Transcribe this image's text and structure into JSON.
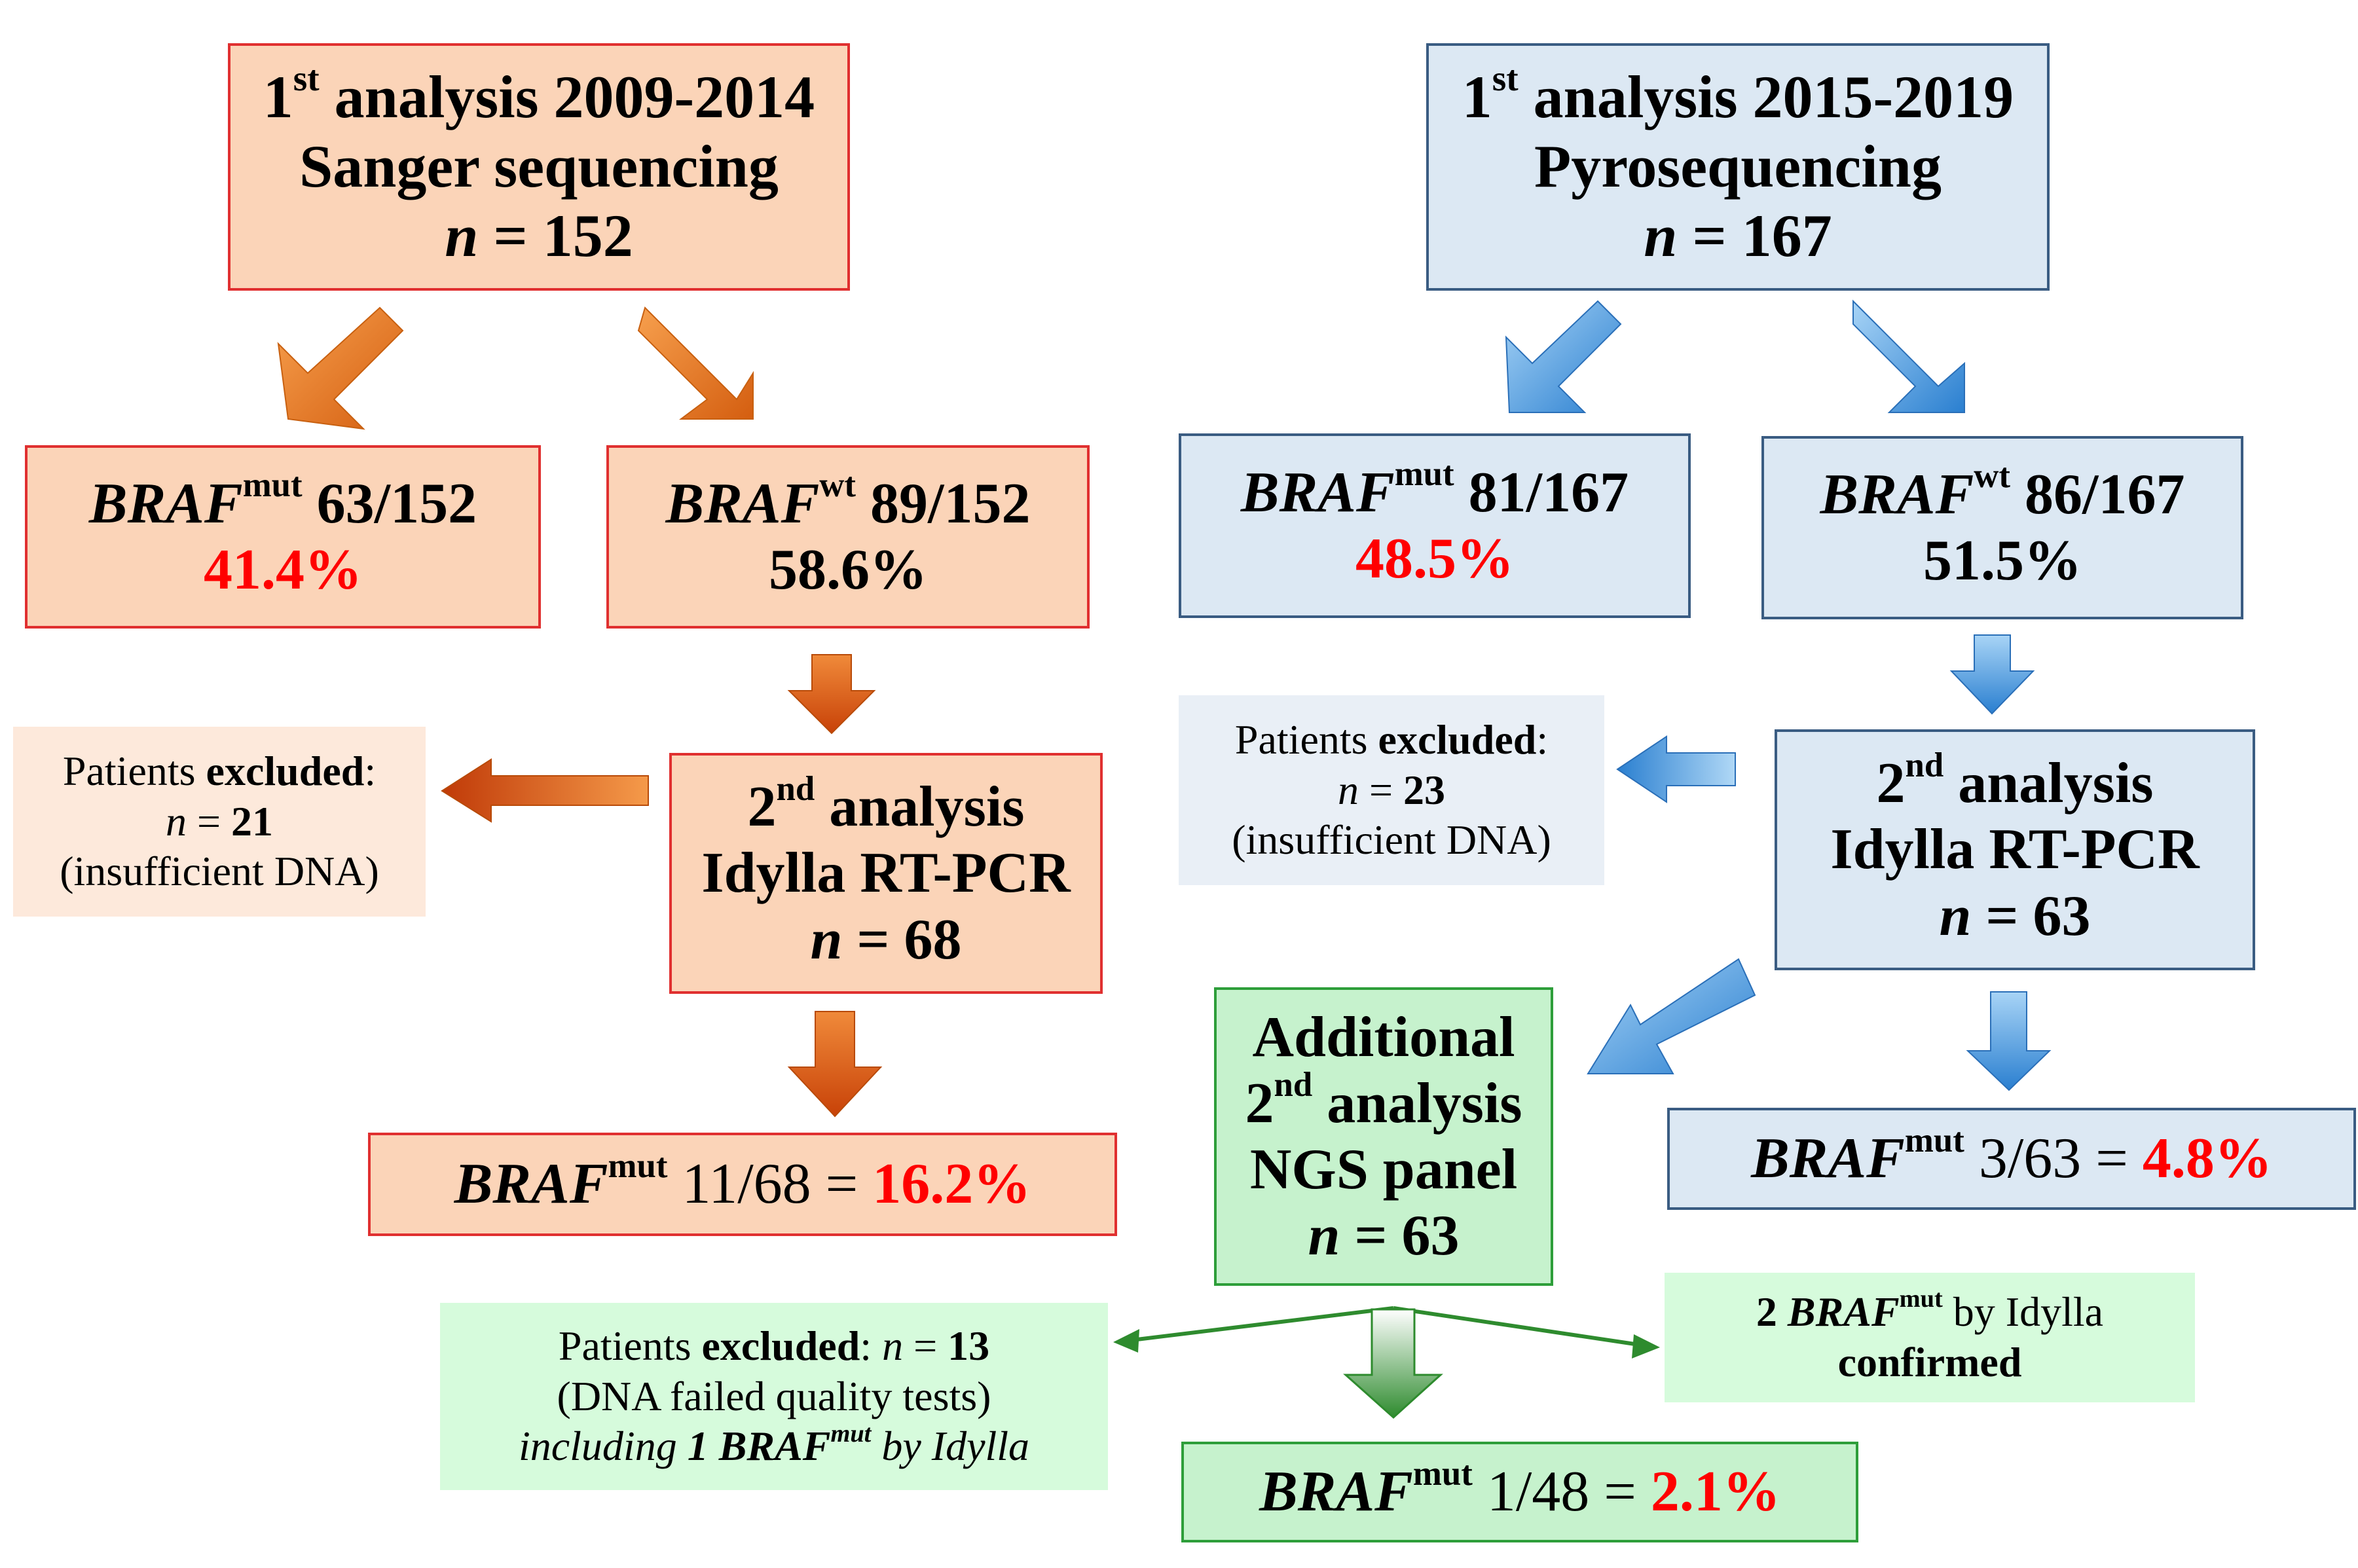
{
  "colors": {
    "orange_fill": "#fbd4b8",
    "blue_fill": "#dce8f3",
    "green_fill": "#c6f2cd",
    "red_text": "#ff0000",
    "orange_arrow": "#e8731e",
    "blue_arrow": "#3b8fd8",
    "green_arrow": "#2e8b2e"
  },
  "left": {
    "first": {
      "ord": "1",
      "sup": "st",
      "title": "analysis 2009-2014",
      "method": "Sanger sequencing",
      "n_label": "n",
      "n_value": "= 152"
    },
    "mut": {
      "gene": "BRAF",
      "sup": "mut",
      "frac": "63/152",
      "pct": "41.4%"
    },
    "wt": {
      "gene": "BRAF",
      "sup": "wt",
      "frac": "89/152",
      "pct": "58.6%"
    },
    "excluded": {
      "prefix": "Patients",
      "bold": "excluded",
      "colon": ":",
      "n_label": "n",
      "n_eq": "=",
      "n_value": "21",
      "reason": "(insufficient DNA)"
    },
    "second": {
      "ord": "2",
      "sup": "nd",
      "title": "analysis",
      "method": "Idylla RT-PCR",
      "n_label": "n",
      "n_value": "= 68"
    },
    "result": {
      "gene": "BRAF",
      "sup": "mut",
      "frac": "11/68 =",
      "pct": "16.2%"
    }
  },
  "right": {
    "first": {
      "ord": "1",
      "sup": "st",
      "title": "analysis 2015-2019",
      "method": "Pyrosequencing",
      "n_label": "n",
      "n_value": "= 167"
    },
    "mut": {
      "gene": "BRAF",
      "sup": "mut",
      "frac": "81/167",
      "pct": "48.5%"
    },
    "wt": {
      "gene": "BRAF",
      "sup": "wt",
      "frac": "86/167",
      "pct": "51.5%"
    },
    "excluded": {
      "prefix": "Patients",
      "bold": "excluded",
      "colon": ":",
      "n_label": "n",
      "n_eq": "=",
      "n_value": "23",
      "reason": "(insufficient DNA)"
    },
    "second": {
      "ord": "2",
      "sup": "nd",
      "title": "analysis",
      "method": "Idylla RT-PCR",
      "n_label": "n",
      "n_value": "= 63"
    },
    "result": {
      "gene": "BRAF",
      "sup": "mut",
      "frac": "3/63 =",
      "pct": "4.8%"
    },
    "ngs": {
      "line1": "Additional",
      "ord": "2",
      "sup": "nd",
      "line2": "analysis",
      "line3": "NGS panel",
      "n_label": "n",
      "n_value": "= 63"
    },
    "ngs_excluded": {
      "prefix": "Patients",
      "bold": "excluded",
      "colon": ":",
      "n_label": "n",
      "n_eq": "=",
      "n_value": "13",
      "reason": "(DNA failed quality tests)",
      "incl_pre": "including",
      "incl_bold": "1 BRAF",
      "incl_sup": "mut",
      "incl_post": "by Idylla"
    },
    "confirmed": {
      "count": "2",
      "gene": "BRAF",
      "sup": "mut",
      "by": "by Idylla",
      "word": "confirmed"
    },
    "ngs_result": {
      "gene": "BRAF",
      "sup": "mut",
      "frac": "1/48 =",
      "pct": "2.1%"
    }
  }
}
